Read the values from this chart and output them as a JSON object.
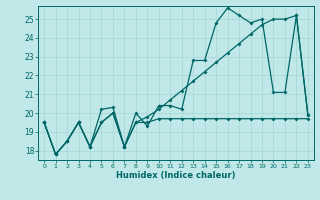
{
  "xlabel": "Humidex (Indice chaleur)",
  "bg_color": "#c0e8e8",
  "line_color": "#006666",
  "grid_color": "#aad8d8",
  "xlim": [
    -0.5,
    23.5
  ],
  "ylim": [
    17.5,
    25.7
  ],
  "yticks": [
    18,
    19,
    20,
    21,
    22,
    23,
    24,
    25
  ],
  "xticks": [
    0,
    1,
    2,
    3,
    4,
    5,
    6,
    7,
    8,
    9,
    10,
    11,
    12,
    13,
    14,
    15,
    16,
    17,
    18,
    19,
    20,
    21,
    22,
    23
  ],
  "line1_x": [
    0,
    1,
    2,
    3,
    4,
    5,
    6,
    7,
    8,
    9,
    10,
    11,
    12,
    13,
    14,
    15,
    16,
    17,
    18,
    19,
    20,
    21,
    22,
    23
  ],
  "line1_y": [
    19.5,
    17.8,
    18.5,
    19.5,
    18.2,
    20.2,
    20.3,
    18.2,
    20.0,
    19.3,
    20.4,
    20.4,
    20.2,
    22.8,
    22.8,
    24.8,
    25.6,
    25.2,
    24.8,
    25.0,
    21.1,
    21.1,
    25.2,
    19.9
  ],
  "line2_x": [
    0,
    1,
    2,
    3,
    4,
    5,
    6,
    7,
    8,
    9,
    10,
    11,
    12,
    13,
    14,
    15,
    16,
    17,
    18,
    19,
    20,
    21,
    22,
    23
  ],
  "line2_y": [
    19.5,
    17.8,
    18.5,
    19.5,
    18.2,
    19.5,
    20.0,
    18.2,
    19.5,
    19.5,
    19.7,
    19.7,
    19.7,
    19.7,
    19.7,
    19.7,
    19.7,
    19.7,
    19.7,
    19.7,
    19.7,
    19.7,
    19.7,
    19.7
  ],
  "line3_x": [
    0,
    1,
    2,
    3,
    4,
    5,
    6,
    7,
    8,
    9,
    10,
    11,
    12,
    13,
    14,
    15,
    16,
    17,
    18,
    19,
    20,
    21,
    22,
    23
  ],
  "line3_y": [
    19.5,
    17.8,
    18.5,
    19.5,
    18.2,
    19.5,
    20.0,
    18.2,
    19.5,
    19.8,
    20.2,
    20.7,
    21.2,
    21.7,
    22.2,
    22.7,
    23.2,
    23.7,
    24.2,
    24.7,
    25.0,
    25.0,
    25.2,
    19.9
  ]
}
